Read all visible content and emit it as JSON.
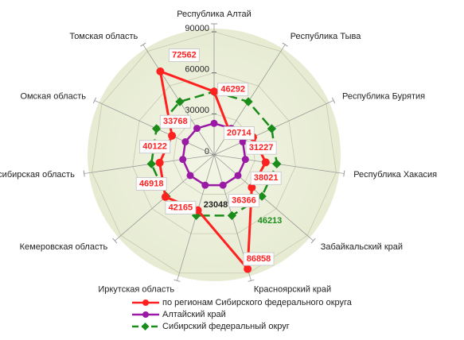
{
  "chart_data": {
    "type": "radar",
    "categories": [
      "Республика Алтай",
      "Республика Тыва",
      "Республика Бурятия",
      "Республика Хакасия",
      "Забайкальский край",
      "Красноярский край",
      "Иркутская область",
      "Кемеровская область",
      "Новосибирская область",
      "Омская область",
      "Томская область"
    ],
    "series": [
      {
        "name": "по регионам Сибирского федерального округа",
        "color": "#ff2020",
        "values": [
          46292,
          20714,
          31227,
          38021,
          36366,
          86858,
          42165,
          46918,
          40122,
          33768,
          72562
        ]
      },
      {
        "name": "Алтайский край",
        "color": "#9a1aa6",
        "values": [
          23048,
          23048,
          23048,
          23048,
          23048,
          23048,
          23048,
          23048,
          23048,
          23048,
          23048
        ]
      },
      {
        "name": "Сибирский федеральный округ",
        "color": "#1a8c1a",
        "values": [
          46213,
          46213,
          46213,
          46213,
          46213,
          46213,
          46213,
          46213,
          46213,
          46213,
          46213
        ]
      }
    ],
    "ylim": [
      0,
      90000
    ],
    "yticks": [
      0,
      30000,
      60000,
      90000
    ],
    "grid": true
  }
}
